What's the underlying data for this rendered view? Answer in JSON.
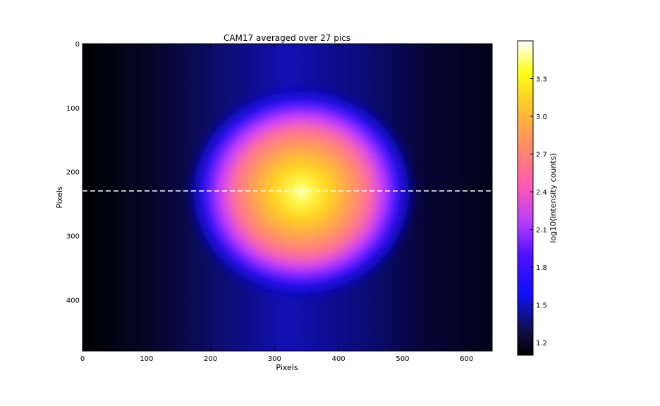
{
  "chart_data": {
    "type": "heatmap",
    "title": "CAM17 averaged over 27 pics",
    "xlabel": "Pixels",
    "ylabel": "Pixels",
    "xlim": [
      0,
      640
    ],
    "ylim": [
      480,
      0
    ],
    "xticks": [
      0,
      100,
      200,
      300,
      400,
      500,
      600
    ],
    "yticks": [
      0,
      100,
      200,
      300,
      400
    ],
    "colormap": "gnuplot2",
    "colorbar": {
      "label": "log10(intensity counts)",
      "range": [
        1.1,
        3.6
      ],
      "ticks": [
        "1.2",
        "1.5",
        "1.8",
        "2.1",
        "2.4",
        "2.7",
        "3.0",
        "3.3"
      ]
    },
    "hotspot_center": {
      "x": 342,
      "y": 232
    },
    "hotspot_peak": 3.6,
    "background_level": 1.1,
    "reference_line": {
      "type": "horizontal",
      "y": 230,
      "style": "dashed",
      "color": "#ffffff"
    },
    "grid": false
  }
}
